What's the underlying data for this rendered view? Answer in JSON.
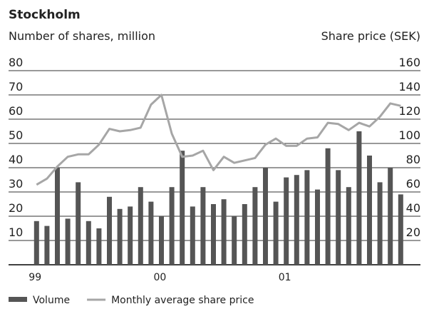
{
  "chart_data": {
    "type": "bar_line",
    "title": "Stockholm",
    "y_label": "Number of shares, million",
    "y2_label": "Share price (SEK)",
    "categories": [
      "99",
      null,
      null,
      null,
      null,
      null,
      null,
      null,
      null,
      null,
      null,
      null,
      "00",
      null,
      null,
      null,
      null,
      null,
      null,
      null,
      null,
      null,
      null,
      null,
      "01",
      null,
      null,
      null,
      null,
      null,
      null,
      null,
      null,
      null,
      null,
      null
    ],
    "series": [
      {
        "name": "Volume",
        "type": "bar",
        "color": "#555555",
        "axis": "y",
        "values": [
          18,
          16,
          40,
          19,
          34,
          18,
          15,
          28,
          23,
          24,
          32,
          26,
          20,
          32,
          47,
          24,
          32,
          25,
          27,
          20,
          25,
          32,
          40,
          26,
          36,
          37,
          39,
          31,
          48,
          39,
          32,
          55,
          45,
          34,
          40,
          29
        ]
      },
      {
        "name": "Monthly average share price",
        "type": "line",
        "color": "#a6a6a6",
        "axis": "y2",
        "values": [
          66,
          71,
          81,
          89,
          91,
          91,
          99,
          112,
          110,
          111,
          113,
          132,
          140,
          108,
          89,
          90,
          94,
          78,
          89,
          84,
          86,
          88,
          99,
          104,
          98,
          98,
          104,
          105,
          117,
          116,
          111,
          117,
          114,
          122,
          133,
          131
        ]
      }
    ],
    "ylim": [
      0,
      80
    ],
    "yticks": [
      10,
      20,
      30,
      40,
      50,
      60,
      70,
      80
    ],
    "y2lim": [
      0,
      160
    ],
    "y2ticks": [
      20,
      40,
      60,
      80,
      100,
      120,
      140,
      160
    ],
    "grid": true,
    "legend": "bottom"
  }
}
